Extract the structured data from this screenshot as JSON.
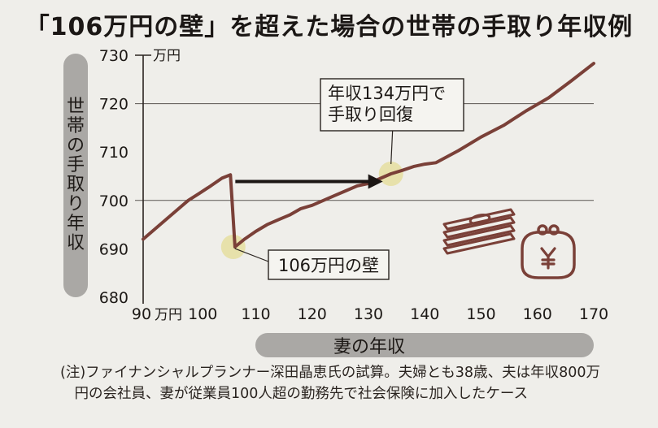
{
  "title": "「106万円の壁」を超えた場合の世帯の手取り年収例",
  "note": "(注)ファイナンシャルプランナー深田晶恵氏の試算。夫婦とも38歳、夫は年収800万\n　円の会社員、妻が従業員100人超の勤務先で社会保険に加入したケース",
  "colors": {
    "line": "#7a4038",
    "highlight": "#e6dfa4",
    "axis_pill": "#aaa8a5",
    "arrow": "#1b1614",
    "icon": "#7a4038"
  },
  "icons": [
    "banknote-stack-icon",
    "yen-purse-icon"
  ],
  "chart_data": {
    "type": "line",
    "title": "「106万円の壁」を超えた場合の世帯の手取り年収例",
    "xlabel": "妻の年収",
    "ylabel": "世帯の手取り年収",
    "x_unit": "万円",
    "y_unit": "万円",
    "xlim": [
      90,
      170
    ],
    "ylim": [
      680,
      730
    ],
    "x_ticks": [
      90,
      100,
      110,
      120,
      130,
      140,
      150,
      160,
      170
    ],
    "x_tick_labels": [
      "90",
      "100",
      "110",
      "120",
      "130",
      "140",
      "150",
      "160",
      "170"
    ],
    "y_ticks": [
      680,
      690,
      700,
      710,
      720,
      730
    ],
    "y_tick_labels": [
      "680",
      "690",
      "700",
      "710",
      "720",
      "730"
    ],
    "grid": {
      "y_lines": [
        700,
        720
      ]
    },
    "series": [
      {
        "values_x": [
          90,
          94,
          98,
          100,
          102,
          104,
          105.5,
          106,
          106.3,
          108,
          110,
          112,
          114,
          116,
          118,
          120,
          122,
          124,
          126,
          128,
          130,
          132,
          134,
          136,
          138,
          140,
          142,
          146,
          150,
          154,
          158,
          162,
          166,
          170
        ],
        "values_y": [
          692,
          696,
          700,
          701.5,
          703,
          704.6,
          705.3,
          696,
          690.4,
          692,
          693.6,
          695,
          696,
          697,
          698.3,
          699,
          700,
          701,
          702,
          703,
          703.5,
          704.5,
          705.5,
          706.2,
          707,
          707.5,
          707.8,
          710.3,
          713.1,
          715.5,
          718.5,
          721.2,
          724.7,
          728.3
        ]
      }
    ],
    "annotations": [
      {
        "text": "106万円の壁",
        "x": 106,
        "y": 690.4
      },
      {
        "text": "年収134万円で\n手取り回復",
        "x": 134,
        "y": 705.5
      }
    ]
  }
}
